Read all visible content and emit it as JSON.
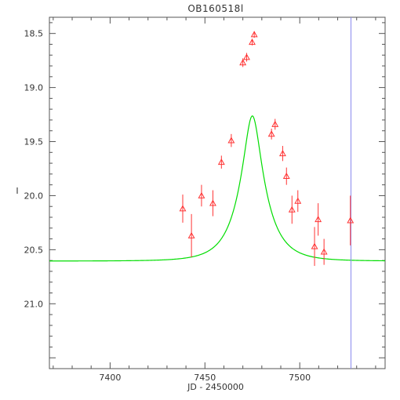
{
  "chart_data": {
    "type": "scatter",
    "title": "OB160518l",
    "xlabel": "JD - 2450000",
    "ylabel": "I",
    "xlim": [
      7368,
      7545
    ],
    "ylim": [
      21.6,
      18.35
    ],
    "y_inverted": true,
    "x_ticks": [
      7400,
      7450,
      7500
    ],
    "x_tick_labels": [
      "7400",
      "7450",
      "7500"
    ],
    "y_ticks": [
      18.5,
      19.0,
      19.5,
      20.0,
      20.5,
      21.0
    ],
    "y_tick_labels": [
      "18.5",
      "19.0",
      "19.5",
      "20.0",
      "20.5",
      "21.0"
    ],
    "grid": false,
    "colors": {
      "data": "#ff3333",
      "model": "#00dd00",
      "marker_line": "#8888ee",
      "axes": "#555555"
    },
    "series": [
      {
        "kind": "points_with_errorbars",
        "marker": "triangle",
        "points": [
          {
            "x": 7438.3,
            "y": 20.12,
            "err": 0.13
          },
          {
            "x": 7442.9,
            "y": 20.37,
            "err": 0.2
          },
          {
            "x": 7448.2,
            "y": 20.0,
            "err": 0.1
          },
          {
            "x": 7454.2,
            "y": 20.07,
            "err": 0.12
          },
          {
            "x": 7458.7,
            "y": 19.69,
            "err": 0.06
          },
          {
            "x": 7463.9,
            "y": 19.49,
            "err": 0.06
          },
          {
            "x": 7470.0,
            "y": 18.77,
            "err": 0.04
          },
          {
            "x": 7472.0,
            "y": 18.72,
            "err": 0.04
          },
          {
            "x": 7474.9,
            "y": 18.58,
            "err": 0.03
          },
          {
            "x": 7476.0,
            "y": 18.51,
            "err": 0.03
          },
          {
            "x": 7485.1,
            "y": 19.43,
            "err": 0.05
          },
          {
            "x": 7487.0,
            "y": 19.34,
            "err": 0.05
          },
          {
            "x": 7491.0,
            "y": 19.61,
            "err": 0.07
          },
          {
            "x": 7493.0,
            "y": 19.82,
            "err": 0.08
          },
          {
            "x": 7495.9,
            "y": 20.13,
            "err": 0.13
          },
          {
            "x": 7499.0,
            "y": 20.05,
            "err": 0.1
          },
          {
            "x": 7507.8,
            "y": 20.47,
            "err": 0.18
          },
          {
            "x": 7509.7,
            "y": 20.22,
            "err": 0.15
          },
          {
            "x": 7512.8,
            "y": 20.52,
            "err": 0.12
          },
          {
            "x": 7526.7,
            "y": 20.23,
            "err": 0.23
          }
        ]
      },
      {
        "kind": "model_curve",
        "form": "microlensing",
        "t0": 7475.0,
        "tE": 13.5,
        "u0": 0.3,
        "I_base": 20.605,
        "x_range": [
          7368,
          7545
        ]
      },
      {
        "kind": "vertical_line",
        "x": 7527
      }
    ]
  }
}
